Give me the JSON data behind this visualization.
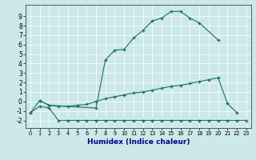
{
  "xlabel": "Humidex (Indice chaleur)",
  "bg_color": "#cce8e8",
  "grid_color": "#ffffff",
  "line_color": "#1a6e6e",
  "line1_x": [
    0,
    1,
    2,
    7,
    8,
    9,
    10,
    11,
    12,
    13,
    14,
    15,
    16,
    17,
    18,
    20
  ],
  "line1_y": [
    -1.2,
    0.1,
    -0.4,
    -0.7,
    4.4,
    5.4,
    5.5,
    6.7,
    7.5,
    8.5,
    8.8,
    9.5,
    9.5,
    8.8,
    8.3,
    6.5
  ],
  "line2_x": [
    1,
    2,
    3,
    4,
    5,
    6,
    7,
    8,
    9,
    10,
    11,
    12,
    13,
    14,
    15,
    16,
    17,
    18,
    19,
    20,
    21,
    22
  ],
  "line2_y": [
    0.1,
    -0.4,
    -0.5,
    -0.5,
    -0.4,
    -0.3,
    0.0,
    0.3,
    0.5,
    0.7,
    0.9,
    1.0,
    1.2,
    1.4,
    1.6,
    1.7,
    1.9,
    2.1,
    2.3,
    2.5,
    -0.2,
    -1.2
  ],
  "line3_x": [
    0,
    1,
    2,
    3,
    4,
    5,
    6,
    7,
    8,
    9,
    10,
    11,
    12,
    13,
    14,
    15,
    16,
    17,
    18,
    19,
    20,
    21,
    22,
    23
  ],
  "line3_y": [
    -1.2,
    -0.5,
    -0.7,
    -2.0,
    -2.0,
    -2.0,
    -2.0,
    -2.0,
    -2.0,
    -2.0,
    -2.0,
    -2.0,
    -2.0,
    -2.0,
    -2.0,
    -2.0,
    -2.0,
    -2.0,
    -2.0,
    -2.0,
    -2.0,
    -2.0,
    -2.0,
    -2.0
  ],
  "xlim": [
    -0.5,
    23.5
  ],
  "ylim": [
    -2.8,
    10.2
  ],
  "yticks": [
    -2,
    -1,
    0,
    1,
    2,
    3,
    4,
    5,
    6,
    7,
    8,
    9
  ],
  "xticks": [
    0,
    1,
    2,
    3,
    4,
    5,
    6,
    7,
    8,
    9,
    10,
    11,
    12,
    13,
    14,
    15,
    16,
    17,
    18,
    19,
    20,
    21,
    22,
    23
  ],
  "xlabel_color": "#00008b",
  "xlabel_fontsize": 6.5,
  "tick_fontsize": 4.8,
  "ytick_fontsize": 5.5
}
